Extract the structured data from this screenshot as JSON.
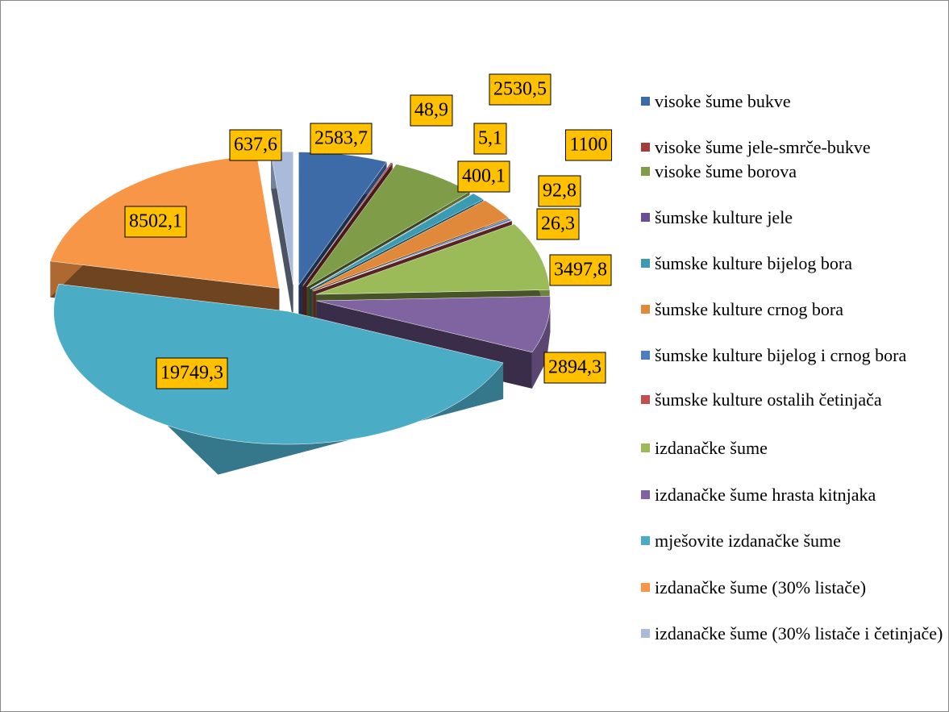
{
  "chart_data": {
    "type": "pie3d",
    "categories": [
      "visoke šume bukve",
      "visoke šume jele-smrče-bukve",
      "visoke šume borova",
      "šumske kulture jele",
      "šumske kulture bijelog bora",
      "šumske kulture crnog bora",
      "šumske kulture bijelog i crnog bora",
      "šumske kulture ostalih četinjača",
      "izdanačke šume",
      "izdanačke šume hrasta kitnjaka",
      "mješovite izdanačke šume",
      "izdanačke šume (30% listače)",
      "izdanačke šume (30% listače i četinjače)"
    ],
    "values": [
      2583.7,
      48.9,
      2530.5,
      5.1,
      400.1,
      1100,
      92.8,
      26.3,
      3497.8,
      2894.3,
      19749.3,
      8502.1,
      637.6
    ],
    "value_labels": [
      "2583,7",
      "48,9",
      "2530,5",
      "5,1",
      "400,1",
      "1100",
      "92,8",
      "26,3",
      "3497,8",
      "2894,3",
      "19749,3",
      "8502,1",
      "637,6"
    ],
    "colors": [
      "#3d6ba8",
      "#a43c3a",
      "#7f9c48",
      "#6a4f92",
      "#3a9bb2",
      "#e0893b",
      "#4a7ec0",
      "#c0504d",
      "#9bbb59",
      "#8064a2",
      "#4bacc6",
      "#f79646",
      "#a9badb"
    ],
    "legend": "right"
  }
}
